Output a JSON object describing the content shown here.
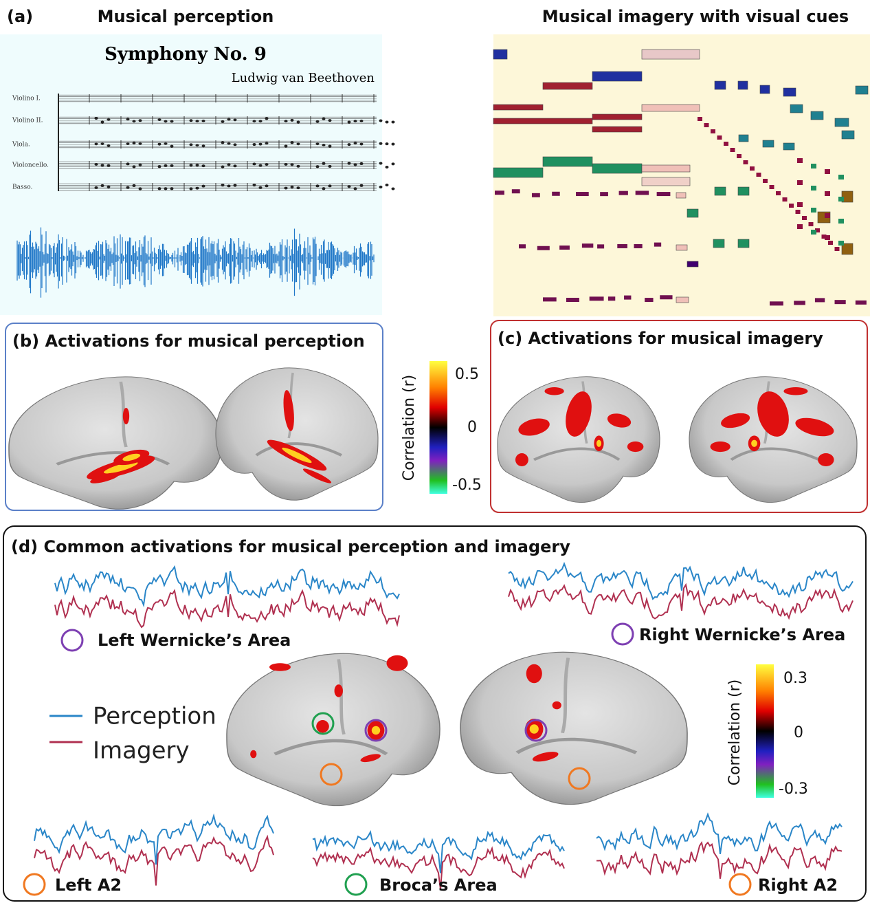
{
  "panel_a": {
    "label": "(a)",
    "title_left": "Musical perception",
    "title_right": "Musical imagery with visual cues",
    "score": {
      "title": "Symphony No. 9",
      "composer": "Ludwig van Beethoven",
      "instruments": [
        "Violino I.",
        "Violino II.",
        "Viola.",
        "Violoncello.",
        "Basso."
      ]
    }
  },
  "panel_b": {
    "title": "(b) Activations for musical perception"
  },
  "colorbar_bc": {
    "label": "Correlation (r)",
    "ticks": [
      "0.5",
      "0",
      "-0.5"
    ]
  },
  "panel_c": {
    "title": "(c) Activations for musical imagery"
  },
  "panel_d": {
    "title": "(d) Common activations for musical perception and imagery",
    "regions": [
      "Left Wernicke’s Area",
      "Right Wernicke’s Area",
      "Left A2",
      "Broca’s Area",
      "Right A2"
    ],
    "legend": [
      "Perception",
      "Imagery"
    ],
    "colorbar": {
      "label": "Correlation (r)",
      "ticks": [
        "0.3",
        "0",
        "-0.3"
      ]
    }
  }
}
